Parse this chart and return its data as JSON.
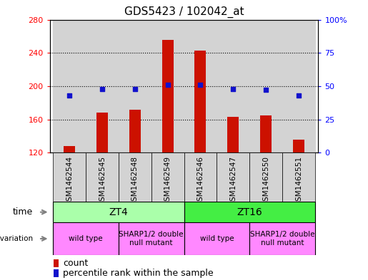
{
  "title": "GDS5423 / 102042_at",
  "samples": [
    "GSM1462544",
    "GSM1462545",
    "GSM1462548",
    "GSM1462549",
    "GSM1462546",
    "GSM1462547",
    "GSM1462550",
    "GSM1462551"
  ],
  "counts": [
    128,
    168,
    172,
    256,
    243,
    163,
    165,
    136
  ],
  "percentiles": [
    43,
    48,
    48,
    51,
    51,
    48,
    47,
    43
  ],
  "ylim_left": [
    120,
    280
  ],
  "ylim_right": [
    0,
    100
  ],
  "yticks_left": [
    120,
    160,
    200,
    240,
    280
  ],
  "yticks_right": [
    0,
    25,
    50,
    75,
    100
  ],
  "bar_color": "#cc1100",
  "dot_color": "#1111cc",
  "bg_color": "#d3d3d3",
  "time_labels": [
    "ZT4",
    "ZT16"
  ],
  "time_color_zt4": "#aaffaa",
  "time_color_zt16": "#44ee44",
  "genotype_labels": [
    "wild type",
    "SHARP1/2 double\nnull mutant",
    "wild type",
    "SHARP1/2 double\nnull mutant"
  ],
  "genotype_color": "#ff88ff",
  "legend_count_label": "count",
  "legend_percentile_label": "percentile rank within the sample"
}
